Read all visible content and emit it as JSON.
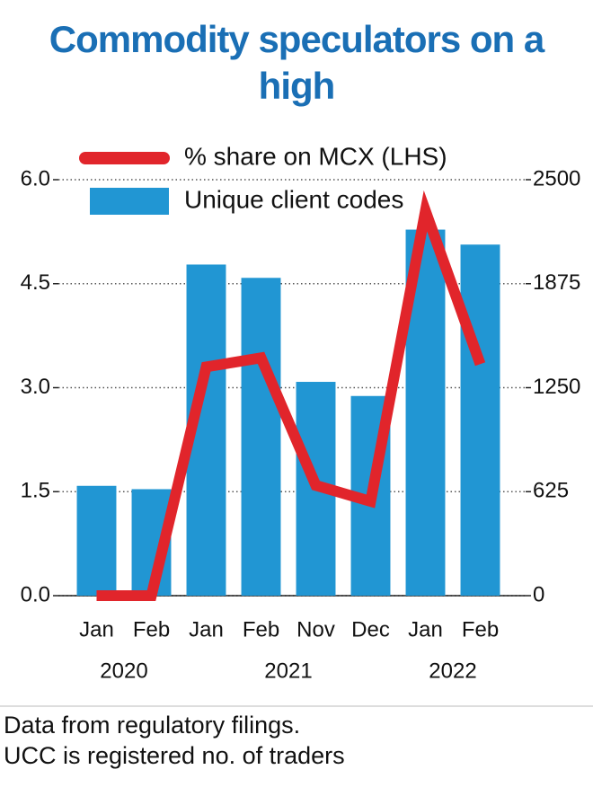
{
  "chart_data": {
    "type": "bar_line",
    "title": "Commodity speculators on a high",
    "categories": [
      "Jan",
      "Feb",
      "Jan",
      "Feb",
      "Nov",
      "Dec",
      "Jan",
      "Feb"
    ],
    "x_groups": [
      {
        "label": "2020",
        "count": 2
      },
      {
        "label": "2021",
        "count": 4
      },
      {
        "label": "2022",
        "count": 2
      }
    ],
    "series": [
      {
        "name": "% share on MCX (LHS)",
        "type": "line",
        "axis": "y",
        "color": "#e1252b",
        "values": [
          0.0,
          0.0,
          3.3,
          3.43,
          1.59,
          1.36,
          5.55,
          3.34
        ]
      },
      {
        "name": "Unique client codes",
        "type": "bar",
        "axis": "y2",
        "color": "#2196d3",
        "values": [
          660,
          640,
          1990,
          1910,
          1285,
          1200,
          2200,
          2110
        ]
      }
    ],
    "ylim": [
      0,
      6
    ],
    "yticks": [
      {
        "value": 0,
        "label": "0.0"
      },
      {
        "value": 1.5,
        "label": "1.5"
      },
      {
        "value": 3,
        "label": "3.0"
      },
      {
        "value": 4.5,
        "label": "4.5"
      },
      {
        "value": 6,
        "label": "6.0"
      }
    ],
    "y2lim": [
      0,
      2500
    ],
    "y2ticks": [
      0,
      625,
      1250,
      1875,
      2500
    ],
    "grid": true,
    "notes": [
      "Data from regulatory filings.",
      "UCC is registered no. of traders"
    ]
  }
}
